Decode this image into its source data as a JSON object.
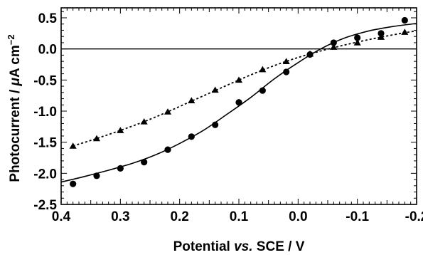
{
  "chart_data": {
    "type": "scatter",
    "title": "",
    "xlabel": "Potential vs. SCE / V",
    "xlabel_parts": {
      "pre": "Potential ",
      "italic": "vs.",
      "post": " SCE / V"
    },
    "ylabel_parts": {
      "pre": "Photocurrent / ",
      "unit_mu": "μ",
      "unit": "A cm",
      "sup": "−2"
    },
    "x_reversed": true,
    "xlim": [
      0.4,
      -0.2
    ],
    "ylim": [
      -2.5,
      0.6
    ],
    "x_ticks": [
      0.4,
      0.3,
      0.2,
      0.1,
      0.0,
      -0.1,
      -0.2
    ],
    "x_tick_labels": [
      "0.4",
      "0.3",
      "0.2",
      "0.1",
      "0.0",
      "-0.1",
      "-0.2"
    ],
    "y_ticks": [
      0.5,
      0.0,
      -0.5,
      -1.0,
      -1.5,
      -2.0,
      -2.5
    ],
    "y_tick_labels": [
      "0.5",
      "0.0",
      "-0.5",
      "-1.0",
      "-1.5",
      "-2.0",
      "-2.5"
    ],
    "zero_line": true,
    "grid": false,
    "series": [
      {
        "marker": "circle",
        "line_style": "solid",
        "color": "#000000",
        "x": [
          0.38,
          0.34,
          0.3,
          0.26,
          0.22,
          0.18,
          0.14,
          0.1,
          0.06,
          0.02,
          -0.02,
          -0.06,
          -0.1,
          -0.14,
          -0.18
        ],
        "y": [
          -2.17,
          -2.04,
          -1.92,
          -1.82,
          -1.62,
          -1.41,
          -1.22,
          -0.86,
          -0.67,
          -0.37,
          -0.09,
          0.1,
          0.18,
          0.25,
          0.46
        ],
        "fit_x": [
          0.4,
          0.36,
          0.32,
          0.28,
          0.24,
          0.2,
          0.16,
          0.12,
          0.08,
          0.04,
          0.0,
          -0.04,
          -0.08,
          -0.12,
          -0.16,
          -0.2
        ],
        "fit_y": [
          -2.14,
          -2.05,
          -1.95,
          -1.84,
          -1.7,
          -1.52,
          -1.31,
          -1.05,
          -0.78,
          -0.48,
          -0.22,
          0.01,
          0.18,
          0.29,
          0.36,
          0.41
        ]
      },
      {
        "marker": "triangle",
        "line_style": "dotted",
        "color": "#000000",
        "x": [
          0.38,
          0.34,
          0.3,
          0.26,
          0.22,
          0.18,
          0.14,
          0.1,
          0.06,
          0.02,
          -0.02,
          -0.06,
          -0.1,
          -0.14,
          -0.18
        ],
        "y": [
          -1.56,
          -1.44,
          -1.31,
          -1.17,
          -1.01,
          -0.83,
          -0.66,
          -0.5,
          -0.33,
          -0.2,
          -0.08,
          0.03,
          0.1,
          0.19,
          0.27
        ],
        "fit_x": [
          0.38,
          0.34,
          0.3,
          0.26,
          0.22,
          0.18,
          0.14,
          0.1,
          0.06,
          0.02,
          -0.02,
          -0.06,
          -0.1,
          -0.14,
          -0.18,
          -0.2
        ],
        "fit_y": [
          -1.56,
          -1.44,
          -1.31,
          -1.17,
          -1.01,
          -0.84,
          -0.67,
          -0.5,
          -0.34,
          -0.2,
          -0.08,
          0.02,
          0.11,
          0.19,
          0.26,
          0.29
        ]
      }
    ]
  }
}
